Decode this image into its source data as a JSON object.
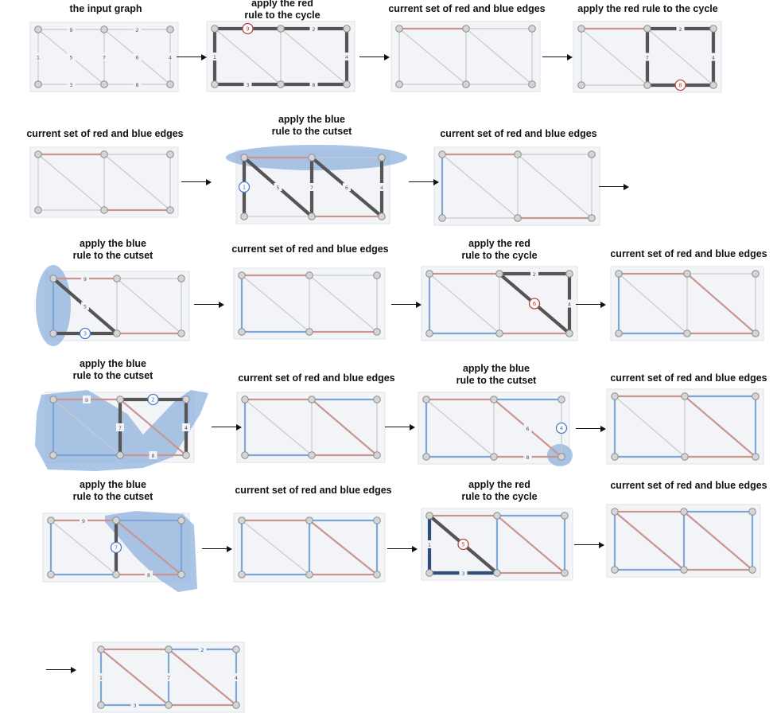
{
  "captions": {
    "input": "the input graph",
    "red_rule_split_1": "apply the red",
    "red_rule_split_2": "rule to the cycle",
    "red_rule_inline": "apply the red rule to the cycle",
    "blue_rule_1": "apply the blue",
    "blue_rule_2": "rule to the cutset",
    "current": "current set of red and blue edges"
  },
  "colors": {
    "panel_bg": "#f2f4f7",
    "panel_border": "#dde3ea",
    "gray_edge": "#c9c9c9",
    "red_edge": "#c9968f",
    "blue_edge": "#7ea6d6",
    "dark_edge": "#555555",
    "dark_blue_edge": "#2f4e7a",
    "node_fill": "#d5d5d5",
    "node_stroke": "#8c8c8c",
    "cut_fill": "#8fb1de",
    "red_marker": "#b5473e",
    "blue_marker": "#4b7cc4"
  },
  "graph": {
    "nodes": [
      "TL",
      "TM",
      "TR",
      "BL",
      "BM",
      "BR"
    ],
    "edges": [
      {
        "id": "e9",
        "from": "TL",
        "to": "TM",
        "weight": "9"
      },
      {
        "id": "e2",
        "from": "TM",
        "to": "TR",
        "weight": "2"
      },
      {
        "id": "e1",
        "from": "TL",
        "to": "BL",
        "weight": "1"
      },
      {
        "id": "e5",
        "from": "TL",
        "to": "BM",
        "weight": "5"
      },
      {
        "id": "e7",
        "from": "TM",
        "to": "BM",
        "weight": "7"
      },
      {
        "id": "e6",
        "from": "TM",
        "to": "BR",
        "weight": "6"
      },
      {
        "id": "e4",
        "from": "TR",
        "to": "BR",
        "weight": "4"
      },
      {
        "id": "e3",
        "from": "BL",
        "to": "BM",
        "weight": "3"
      },
      {
        "id": "e8",
        "from": "BM",
        "to": "BR",
        "weight": "8"
      }
    ]
  },
  "panels": [
    {
      "edges": {
        "e9": "g",
        "e2": "g",
        "e1": "g",
        "e5": "g",
        "e7": "g",
        "e6": "g",
        "e4": "g",
        "e3": "g",
        "e8": "g"
      },
      "labels": [
        "e9",
        "e2",
        "e1",
        "e5",
        "e7",
        "e6",
        "e4",
        "e3",
        "e8"
      ]
    },
    {
      "edges": {
        "e9": "d",
        "e2": "d",
        "e1": "d",
        "e5": "g",
        "e7": "g",
        "e6": "g",
        "e4": "d",
        "e3": "d",
        "e8": "d"
      },
      "labels": [
        "e2",
        "e1",
        "e4",
        "e3",
        "e8"
      ],
      "marker": {
        "edge": "e9",
        "kind": "red",
        "text": "9"
      }
    },
    {
      "edges": {
        "e9": "r",
        "e2": "g",
        "e1": "g",
        "e5": "g",
        "e7": "g",
        "e6": "g",
        "e4": "g",
        "e3": "g",
        "e8": "g"
      },
      "labels": []
    },
    {
      "edges": {
        "e9": "r",
        "e2": "d",
        "e1": "g",
        "e5": "g",
        "e7": "d",
        "e6": "g",
        "e4": "d",
        "e3": "g",
        "e8": "d"
      },
      "labels": [
        "e2",
        "e7",
        "e4"
      ],
      "marker": {
        "edge": "e8",
        "kind": "red",
        "text": "8"
      }
    },
    {
      "edges": {
        "e9": "r",
        "e2": "g",
        "e1": "g",
        "e5": "g",
        "e7": "g",
        "e6": "g",
        "e4": "g",
        "e3": "g",
        "e8": "r"
      },
      "labels": []
    },
    {
      "edges": {
        "e9": "r",
        "e2": "g",
        "e1": "d",
        "e5": "d",
        "e7": "d",
        "e6": "d",
        "e4": "d",
        "e3": "g",
        "e8": "r"
      },
      "labels": [
        "e5",
        "e7",
        "e6",
        "e4"
      ],
      "marker": {
        "edge": "e1",
        "kind": "blue",
        "text": "1"
      }
    },
    {
      "edges": {
        "e9": "r",
        "e2": "g",
        "e1": "b",
        "e5": "g",
        "e7": "g",
        "e6": "g",
        "e4": "g",
        "e3": "g",
        "e8": "r"
      },
      "labels": []
    },
    {
      "edges": {
        "e9": "r",
        "e2": "g",
        "e1": "b",
        "e5": "d",
        "e7": "g",
        "e6": "g",
        "e4": "g",
        "e3": "d",
        "e8": "r"
      },
      "labels": [
        "e9",
        "e5"
      ],
      "marker": {
        "edge": "e3",
        "kind": "blue",
        "text": "3"
      }
    },
    {
      "edges": {
        "e9": "r",
        "e2": "g",
        "e1": "b",
        "e5": "g",
        "e7": "g",
        "e6": "g",
        "e4": "g",
        "e3": "b",
        "e8": "r"
      },
      "labels": []
    },
    {
      "edges": {
        "e9": "r",
        "e2": "d",
        "e1": "b",
        "e5": "g",
        "e7": "g",
        "e6": "d",
        "e4": "d",
        "e3": "b",
        "e8": "r"
      },
      "labels": [
        "e2",
        "e4"
      ],
      "marker": {
        "edge": "e6",
        "kind": "red",
        "text": "6"
      }
    },
    {
      "edges": {
        "e9": "r",
        "e2": "g",
        "e1": "b",
        "e5": "g",
        "e7": "g",
        "e6": "r",
        "e4": "g",
        "e3": "b",
        "e8": "r"
      },
      "labels": []
    },
    {
      "edges": {
        "e9": "r",
        "e2": "d",
        "e1": "b",
        "e5": "g",
        "e7": "d",
        "e6": "r",
        "e4": "d",
        "e3": "b",
        "e8": "r"
      },
      "labels": [
        "e9",
        "e7",
        "e4",
        "e8"
      ],
      "marker": {
        "edge": "e2",
        "kind": "blue",
        "text": "2"
      }
    },
    {
      "edges": {
        "e9": "r",
        "e2": "b",
        "e1": "b",
        "e5": "g",
        "e7": "g",
        "e6": "r",
        "e4": "g",
        "e3": "b",
        "e8": "r"
      },
      "labels": []
    },
    {
      "edges": {
        "e9": "r",
        "e2": "b",
        "e1": "b",
        "e5": "g",
        "e7": "g",
        "e6": "r",
        "e4": "g",
        "e3": "b",
        "e8": "r"
      },
      "labels": [
        "e6",
        "e8"
      ],
      "marker": {
        "edge": "e4",
        "kind": "blue",
        "text": "4"
      }
    },
    {
      "edges": {
        "e9": "r",
        "e2": "b",
        "e1": "b",
        "e5": "g",
        "e7": "g",
        "e6": "r",
        "e4": "b",
        "e3": "b",
        "e8": "r"
      },
      "labels": []
    },
    {
      "edges": {
        "e9": "r",
        "e2": "b",
        "e1": "b",
        "e5": "g",
        "e7": "d",
        "e6": "r",
        "e4": "b",
        "e3": "b",
        "e8": "r"
      },
      "labels": [
        "e9",
        "e8"
      ],
      "marker": {
        "edge": "e7",
        "kind": "blue",
        "text": "7"
      }
    },
    {
      "edges": {
        "e9": "r",
        "e2": "b",
        "e1": "b",
        "e5": "g",
        "e7": "b",
        "e6": "r",
        "e4": "b",
        "e3": "b",
        "e8": "r"
      },
      "labels": []
    },
    {
      "edges": {
        "e9": "r",
        "e2": "b",
        "e1": "k",
        "e5": "d",
        "e7": "b",
        "e6": "r",
        "e4": "b",
        "e3": "k",
        "e8": "r"
      },
      "labels": [
        "e1",
        "e3"
      ],
      "marker": {
        "edge": "e5",
        "kind": "red",
        "text": "5"
      }
    },
    {
      "edges": {
        "e9": "r",
        "e2": "b",
        "e1": "b",
        "e5": "r",
        "e7": "b",
        "e6": "r",
        "e4": "b",
        "e3": "b",
        "e8": "r"
      },
      "labels": []
    },
    {
      "edges": {
        "e9": "r",
        "e2": "b",
        "e1": "b",
        "e5": "r",
        "e7": "b",
        "e6": "r",
        "e4": "b",
        "e3": "b",
        "e8": "r"
      },
      "labels": [
        "e2",
        "e1",
        "e7",
        "e4",
        "e3"
      ]
    }
  ]
}
